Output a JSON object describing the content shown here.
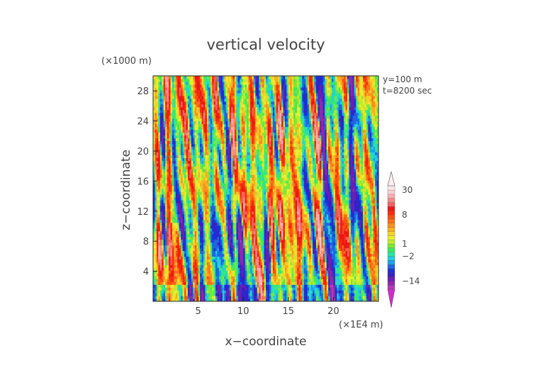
{
  "chart_data": {
    "type": "heatmap",
    "title": "vertical velocity",
    "xlabel": "x−coordinate",
    "ylabel": "z−coordinate",
    "x_unit": "(×1E4 m)",
    "y_unit": "(×1000 m)",
    "annotations": [
      "y=100  m",
      "t=8200 sec"
    ],
    "xlim": [
      0,
      25
    ],
    "ylim": [
      0,
      30
    ],
    "x_ticks": [
      5,
      10,
      15,
      20
    ],
    "y_ticks": [
      4,
      8,
      12,
      16,
      20,
      24,
      28
    ],
    "colorbar": {
      "tick_labels": [
        "30",
        "8",
        "1",
        "−2",
        "−14"
      ],
      "levels": [
        -26,
        -20,
        -14,
        -10,
        -8,
        -6,
        -4,
        -3,
        -2,
        -1,
        0,
        1,
        2,
        3,
        4,
        5,
        6,
        7,
        8,
        10,
        12,
        14,
        16,
        20,
        30
      ],
      "colors": [
        "#b33ab8",
        "#8f2aa8",
        "#6b1fb3",
        "#3a1fc2",
        "#1f2fd6",
        "#1e66e0",
        "#1fa0e8",
        "#20d0e0",
        "#2ae6a0",
        "#3aea60",
        "#7de83a",
        "#c0ec30",
        "#ecec30",
        "#f8d028",
        "#f8b020",
        "#f89020",
        "#f87018",
        "#f85010",
        "#f82a10",
        "#e81818",
        "#f26060",
        "#f58a8a",
        "#f8b0b0",
        "#fad0d0",
        "#fbe6e6"
      ],
      "over_color": "#fcefef",
      "under_color": "#d32ad0"
    }
  }
}
